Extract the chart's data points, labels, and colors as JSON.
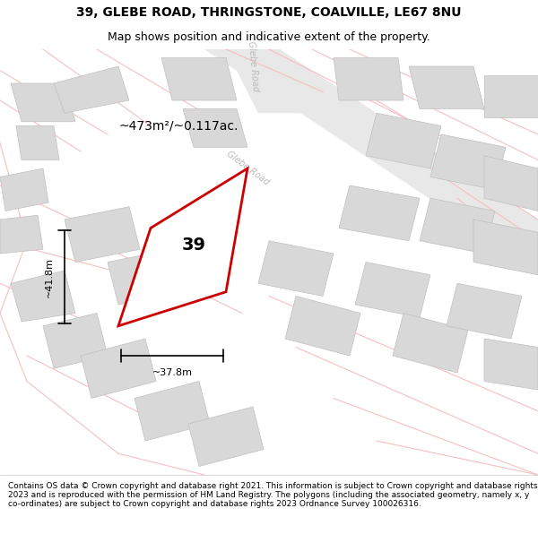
{
  "title_line1": "39, GLEBE ROAD, THRINGSTONE, COALVILLE, LE67 8NU",
  "title_line2": "Map shows position and indicative extent of the property.",
  "footer_text": "Contains OS data © Crown copyright and database right 2021. This information is subject to Crown copyright and database rights 2023 and is reproduced with the permission of HM Land Registry. The polygons (including the associated geometry, namely x, y co-ordinates) are subject to Crown copyright and database rights 2023 Ordnance Survey 100026316.",
  "area_label": "~473m²/~0.117ac.",
  "width_label": "~37.8m",
  "height_label": "~41.8m",
  "number_label": "39",
  "background_color": "#f5f0f0",
  "map_background": "#f5f0f0",
  "road_color_light": "#f5c0c0",
  "building_fill": "#d8d8d8",
  "building_edge": "#c0c0c0",
  "road_label_color": "#aaaaaa",
  "highlight_fill": "#ffffff",
  "highlight_edge": "#cc0000",
  "dimension_color": "#000000",
  "title_bg": "#ffffff",
  "footer_bg": "#ffffff"
}
